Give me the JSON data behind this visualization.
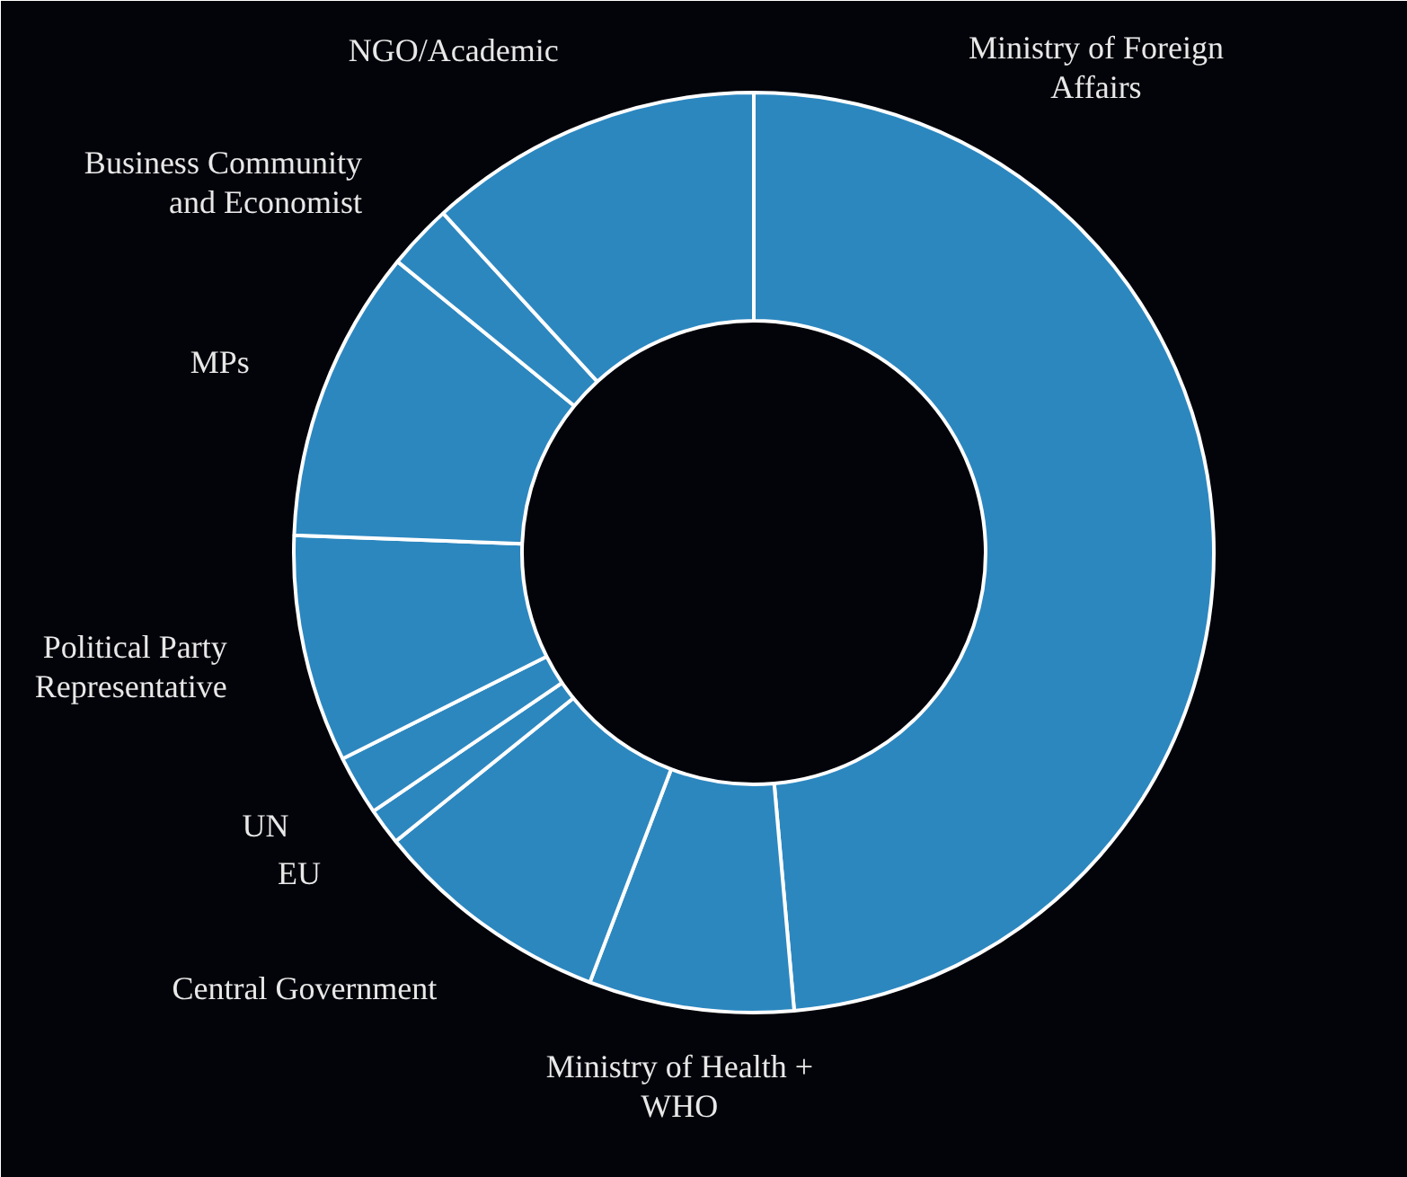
{
  "chart_data": {
    "type": "donut",
    "categories": [
      "Ministry of Foreign Affairs",
      "Ministry of Health + WHO",
      "Central Government",
      "EU",
      "UN",
      "Political Party Representative",
      "MPs",
      "Business Community and Economist",
      "NGO/Academic"
    ],
    "values": [
      48.6,
      7.2,
      8.4,
      1.3,
      2.1,
      8.0,
      10.3,
      2.3,
      11.8
    ],
    "colors": [
      "#2c87bf",
      "#2c87bf",
      "#2c87bf",
      "#2c87bf",
      "#2c87bf",
      "#2c87bf",
      "#2c87bf",
      "#2c87bf",
      "#2c87bf"
    ]
  }
}
